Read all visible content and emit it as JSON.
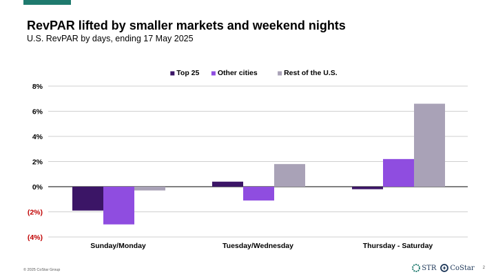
{
  "title": "RevPAR lifted by smaller markets and weekend nights",
  "subtitle": "U.S. RevPAR by days, ending 17 May 2025",
  "footer": {
    "copyright": "© 2025 CoStar Group",
    "page": "2",
    "logo_str": "STR",
    "logo_costar": "CoStar"
  },
  "colors": {
    "accent": "#1f7a6e",
    "negative_tick": "#c00000"
  },
  "chart_data": {
    "type": "bar",
    "categories": [
      "Sunday/Monday",
      "Tuesday/Wednesday",
      "Thursday - Saturday"
    ],
    "series": [
      {
        "name": "Top 25",
        "color": "#3b1566",
        "values": [
          -1.9,
          0.4,
          -0.2
        ]
      },
      {
        "name": "Other cities",
        "color": "#8f4de0",
        "values": [
          -3.0,
          -1.1,
          2.2
        ]
      },
      {
        "name": "Rest of the U.S.",
        "color": "#a9a2b7",
        "values": [
          -0.3,
          1.8,
          6.6
        ]
      }
    ],
    "ylim": [
      -4,
      8
    ],
    "yticks": [
      8,
      6,
      4,
      2,
      0,
      -2,
      -4
    ],
    "ytick_labels": [
      "8%",
      "6%",
      "4%",
      "2%",
      "0%",
      "(2%)",
      "(4%)"
    ],
    "legend_position": "top-center",
    "grid": true
  }
}
